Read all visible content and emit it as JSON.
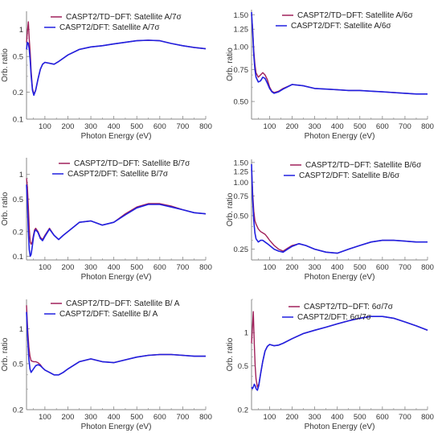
{
  "colors": {
    "td_dft": "#a0205a",
    "dft": "#2020e0",
    "axis": "#888888",
    "text": "#333333"
  },
  "chart_data": [
    {
      "type": "line",
      "xlabel": "Photon Energy (eV)",
      "ylabel": "Orb. ratio",
      "x_scale": "linear",
      "y_scale": "log",
      "xlim": [
        20,
        800
      ],
      "ylim": [
        0.1,
        1.6
      ],
      "x_ticks": [
        100,
        200,
        300,
        400,
        500,
        600,
        700,
        800
      ],
      "y_ticks": [
        {
          "v": 0.1,
          "label": "0.1"
        },
        {
          "v": 0.2,
          "label": "0.2"
        },
        {
          "v": 0.5,
          "label": "0.5"
        },
        {
          "v": 1,
          "label": "1"
        }
      ],
      "legend_position": "top",
      "series": [
        {
          "name": "CASPT2/TD−DFT: Satellite A/7σ",
          "color_key": "td_dft",
          "x": [
            20,
            24,
            28,
            32,
            36,
            40,
            46,
            52,
            60,
            70,
            80,
            90,
            100,
            120,
            140,
            160,
            200,
            250,
            300,
            350,
            400,
            450,
            500,
            550,
            600,
            650,
            700,
            750,
            800
          ],
          "y": [
            0.72,
            0.95,
            1.22,
            0.78,
            0.55,
            0.35,
            0.22,
            0.19,
            0.21,
            0.28,
            0.36,
            0.41,
            0.43,
            0.42,
            0.41,
            0.44,
            0.52,
            0.6,
            0.64,
            0.66,
            0.69,
            0.72,
            0.75,
            0.76,
            0.75,
            0.7,
            0.66,
            0.63,
            0.61
          ]
        },
        {
          "name": "CASPT2/DFT: Satellite A/7σ",
          "color_key": "dft",
          "x": [
            20,
            24,
            28,
            32,
            36,
            40,
            46,
            52,
            60,
            70,
            80,
            90,
            100,
            120,
            140,
            160,
            200,
            250,
            300,
            350,
            400,
            450,
            500,
            550,
            600,
            650,
            700,
            750,
            800
          ],
          "y": [
            0.6,
            0.72,
            0.7,
            0.6,
            0.45,
            0.31,
            0.21,
            0.185,
            0.21,
            0.28,
            0.36,
            0.41,
            0.43,
            0.42,
            0.41,
            0.44,
            0.52,
            0.6,
            0.64,
            0.66,
            0.69,
            0.72,
            0.75,
            0.76,
            0.75,
            0.7,
            0.66,
            0.63,
            0.61
          ]
        }
      ]
    },
    {
      "type": "line",
      "xlabel": "Photon Energy (eV)",
      "ylabel": "Orb. ratio",
      "x_scale": "linear",
      "y_scale": "log",
      "xlim": [
        20,
        800
      ],
      "ylim": [
        0.4,
        1.6
      ],
      "x_ticks": [
        100,
        200,
        300,
        400,
        500,
        600,
        700,
        800
      ],
      "y_ticks": [
        {
          "v": 0.5,
          "label": "0.50"
        },
        {
          "v": 0.75,
          "label": "0.75"
        },
        {
          "v": 1.0,
          "label": "1.00"
        },
        {
          "v": 1.25,
          "label": "1.25"
        },
        {
          "v": 1.5,
          "label": "1.50"
        }
      ],
      "legend_position": "top",
      "series": [
        {
          "name": "CASPT2/TD−DFT: Satellite A/6σ",
          "color_key": "td_dft",
          "x": [
            20,
            25,
            30,
            35,
            40,
            50,
            60,
            70,
            80,
            90,
            100,
            110,
            120,
            140,
            160,
            200,
            250,
            300,
            350,
            400,
            450,
            500,
            550,
            600,
            650,
            700,
            750,
            800
          ],
          "y": [
            1.5,
            1.25,
            0.95,
            0.8,
            0.72,
            0.68,
            0.7,
            0.72,
            0.7,
            0.66,
            0.6,
            0.57,
            0.56,
            0.57,
            0.59,
            0.62,
            0.61,
            0.59,
            0.585,
            0.58,
            0.575,
            0.575,
            0.57,
            0.565,
            0.56,
            0.555,
            0.55,
            0.55
          ]
        },
        {
          "name": "CASPT2/DFT: Satellite A/6σ",
          "color_key": "dft",
          "x": [
            20,
            25,
            30,
            35,
            40,
            50,
            60,
            70,
            80,
            90,
            100,
            110,
            120,
            140,
            160,
            200,
            250,
            300,
            350,
            400,
            450,
            500,
            550,
            600,
            650,
            700,
            750,
            800
          ],
          "y": [
            1.55,
            1.2,
            0.9,
            0.75,
            0.68,
            0.64,
            0.65,
            0.68,
            0.67,
            0.63,
            0.59,
            0.565,
            0.555,
            0.565,
            0.585,
            0.62,
            0.61,
            0.59,
            0.585,
            0.58,
            0.575,
            0.575,
            0.57,
            0.565,
            0.56,
            0.555,
            0.55,
            0.55
          ]
        }
      ]
    },
    {
      "type": "line",
      "xlabel": "Photon Energy (eV)",
      "ylabel": "Orb. ratio",
      "x_scale": "linear",
      "y_scale": "log",
      "xlim": [
        20,
        800
      ],
      "ylim": [
        0.09,
        1.6
      ],
      "x_ticks": [
        100,
        200,
        300,
        400,
        500,
        600,
        700,
        800
      ],
      "y_ticks": [
        {
          "v": 0.1,
          "label": "0.1"
        },
        {
          "v": 0.2,
          "label": "0.2"
        },
        {
          "v": 0.5,
          "label": "0.5"
        },
        {
          "v": 1,
          "label": "1"
        }
      ],
      "legend_position": "top",
      "series": [
        {
          "name": "CASPT2/TD−DFT: Satellite B/7σ",
          "color_key": "td_dft",
          "x": [
            20,
            24,
            28,
            32,
            36,
            40,
            45,
            50,
            55,
            60,
            70,
            80,
            90,
            100,
            120,
            140,
            160,
            180,
            200,
            250,
            300,
            350,
            400,
            450,
            500,
            550,
            600,
            650,
            700,
            750,
            800
          ],
          "y": [
            0.9,
            0.7,
            0.4,
            0.22,
            0.15,
            0.14,
            0.15,
            0.18,
            0.21,
            0.22,
            0.2,
            0.17,
            0.16,
            0.18,
            0.22,
            0.18,
            0.16,
            0.18,
            0.2,
            0.26,
            0.27,
            0.24,
            0.26,
            0.33,
            0.4,
            0.44,
            0.44,
            0.41,
            0.37,
            0.34,
            0.33
          ]
        },
        {
          "name": "CASPT2/DFT: Satellite B/7σ",
          "color_key": "dft",
          "x": [
            20,
            24,
            28,
            32,
            36,
            40,
            45,
            50,
            55,
            60,
            70,
            80,
            90,
            100,
            120,
            140,
            160,
            180,
            200,
            250,
            300,
            350,
            400,
            450,
            500,
            550,
            600,
            650,
            700,
            750,
            800
          ],
          "y": [
            0.75,
            0.45,
            0.2,
            0.12,
            0.1,
            0.105,
            0.13,
            0.17,
            0.2,
            0.21,
            0.195,
            0.165,
            0.155,
            0.175,
            0.215,
            0.18,
            0.16,
            0.18,
            0.2,
            0.26,
            0.27,
            0.24,
            0.26,
            0.32,
            0.39,
            0.43,
            0.43,
            0.4,
            0.37,
            0.34,
            0.33
          ]
        }
      ]
    },
    {
      "type": "line",
      "xlabel": "Photon Energy (eV)",
      "ylabel": "Orb. ratio",
      "x_scale": "linear",
      "y_scale": "log",
      "xlim": [
        20,
        800
      ],
      "ylim": [
        0.2,
        1.6
      ],
      "x_ticks": [
        100,
        200,
        300,
        400,
        500,
        600,
        700,
        800
      ],
      "y_ticks": [
        {
          "v": 0.25,
          "label": "0.25"
        },
        {
          "v": 0.5,
          "label": "0.50"
        },
        {
          "v": 0.75,
          "label": "0.75"
        },
        {
          "v": 1.0,
          "label": "1.00"
        },
        {
          "v": 1.25,
          "label": "1.25"
        },
        {
          "v": 1.5,
          "label": "1.50"
        }
      ],
      "legend_position": "top",
      "series": [
        {
          "name": "CASPT2/TD−DFT: Satellite B/6σ",
          "color_key": "td_dft",
          "x": [
            20,
            25,
            30,
            35,
            40,
            50,
            60,
            70,
            80,
            90,
            100,
            120,
            140,
            160,
            180,
            200,
            230,
            260,
            300,
            350,
            400,
            450,
            500,
            550,
            600,
            650,
            700,
            750,
            800
          ],
          "y": [
            1.3,
            0.8,
            0.55,
            0.45,
            0.42,
            0.38,
            0.36,
            0.35,
            0.34,
            0.32,
            0.3,
            0.27,
            0.25,
            0.24,
            0.255,
            0.27,
            0.28,
            0.27,
            0.25,
            0.235,
            0.23,
            0.25,
            0.27,
            0.29,
            0.3,
            0.3,
            0.295,
            0.29,
            0.29
          ]
        },
        {
          "name": "CASPT2/DFT: Satellite B/6σ",
          "color_key": "dft",
          "x": [
            20,
            25,
            30,
            35,
            40,
            50,
            60,
            70,
            80,
            90,
            100,
            120,
            140,
            160,
            180,
            200,
            230,
            260,
            300,
            350,
            400,
            450,
            500,
            550,
            600,
            650,
            700,
            750,
            800
          ],
          "y": [
            1.45,
            0.7,
            0.45,
            0.35,
            0.31,
            0.29,
            0.3,
            0.3,
            0.29,
            0.28,
            0.27,
            0.25,
            0.24,
            0.235,
            0.25,
            0.265,
            0.28,
            0.27,
            0.25,
            0.235,
            0.23,
            0.25,
            0.27,
            0.29,
            0.3,
            0.3,
            0.295,
            0.29,
            0.29
          ]
        }
      ]
    },
    {
      "type": "line",
      "xlabel": "Photon Energy (eV)",
      "ylabel": "Orb. ratio",
      "x_scale": "linear",
      "y_scale": "log",
      "xlim": [
        20,
        800
      ],
      "ylim": [
        0.2,
        1.8
      ],
      "x_ticks": [
        100,
        200,
        300,
        400,
        500,
        600,
        700,
        800
      ],
      "y_ticks": [
        {
          "v": 0.2,
          "label": "0.2"
        },
        {
          "v": 0.5,
          "label": "0.5"
        },
        {
          "v": 1,
          "label": "1"
        }
      ],
      "legend_position": "top",
      "series": [
        {
          "name": "CASPT2/TD−DFT: Satellite B/ A",
          "color_key": "td_dft",
          "x": [
            20,
            25,
            30,
            35,
            40,
            50,
            60,
            70,
            80,
            90,
            100,
            120,
            140,
            160,
            180,
            200,
            250,
            300,
            350,
            400,
            450,
            500,
            550,
            600,
            650,
            700,
            750,
            800
          ],
          "y": [
            1.6,
            1.0,
            0.7,
            0.58,
            0.53,
            0.52,
            0.52,
            0.51,
            0.49,
            0.46,
            0.44,
            0.42,
            0.4,
            0.4,
            0.42,
            0.45,
            0.52,
            0.55,
            0.52,
            0.51,
            0.54,
            0.57,
            0.59,
            0.6,
            0.6,
            0.59,
            0.58,
            0.58
          ]
        },
        {
          "name": "CASPT2/DFT: Satellite B/ A",
          "color_key": "dft",
          "x": [
            20,
            25,
            30,
            35,
            40,
            50,
            60,
            70,
            80,
            90,
            100,
            120,
            140,
            160,
            180,
            200,
            250,
            300,
            350,
            400,
            450,
            500,
            550,
            600,
            650,
            700,
            750,
            800
          ],
          "y": [
            1.4,
            0.85,
            0.55,
            0.45,
            0.42,
            0.45,
            0.48,
            0.49,
            0.48,
            0.46,
            0.44,
            0.42,
            0.4,
            0.4,
            0.42,
            0.45,
            0.52,
            0.55,
            0.52,
            0.51,
            0.54,
            0.57,
            0.59,
            0.6,
            0.6,
            0.59,
            0.58,
            0.58
          ]
        }
      ]
    },
    {
      "type": "line",
      "xlabel": "Photon Energy (eV)",
      "ylabel": "Orb. ratio",
      "x_scale": "linear",
      "y_scale": "log",
      "xlim": [
        20,
        800
      ],
      "ylim": [
        0.2,
        2.0
      ],
      "x_ticks": [
        100,
        200,
        300,
        400,
        500,
        600,
        700,
        800
      ],
      "y_ticks": [
        {
          "v": 0.2,
          "label": "0.2"
        },
        {
          "v": 0.5,
          "label": "0.5"
        },
        {
          "v": 1,
          "label": "1"
        }
      ],
      "legend_position": "top",
      "series": [
        {
          "name": "CASPT2/TD−DFT: 6σ/7σ",
          "color_key": "td_dft",
          "x": [
            20,
            24,
            28,
            32,
            36,
            40,
            46,
            52,
            60,
            70,
            80,
            90,
            100,
            120,
            140,
            160,
            200,
            250,
            300,
            350,
            400,
            450,
            500,
            550,
            600,
            650,
            700,
            750,
            800
          ],
          "y": [
            0.8,
            1.1,
            1.55,
            0.8,
            0.5,
            0.38,
            0.32,
            0.34,
            0.42,
            0.55,
            0.68,
            0.75,
            0.78,
            0.76,
            0.77,
            0.8,
            0.88,
            0.98,
            1.05,
            1.12,
            1.2,
            1.28,
            1.35,
            1.4,
            1.4,
            1.35,
            1.25,
            1.15,
            1.05
          ]
        },
        {
          "name": "CASPT2/DFT: 6σ/7σ",
          "color_key": "dft",
          "x": [
            20,
            24,
            28,
            32,
            36,
            40,
            46,
            52,
            60,
            70,
            80,
            90,
            100,
            120,
            140,
            160,
            200,
            250,
            300,
            350,
            400,
            450,
            500,
            550,
            600,
            650,
            700,
            750,
            800
          ],
          "y": [
            0.32,
            0.31,
            0.32,
            0.34,
            0.33,
            0.31,
            0.3,
            0.33,
            0.42,
            0.55,
            0.68,
            0.75,
            0.78,
            0.76,
            0.77,
            0.8,
            0.88,
            0.98,
            1.05,
            1.12,
            1.2,
            1.28,
            1.35,
            1.4,
            1.4,
            1.35,
            1.25,
            1.15,
            1.05
          ]
        }
      ]
    }
  ]
}
